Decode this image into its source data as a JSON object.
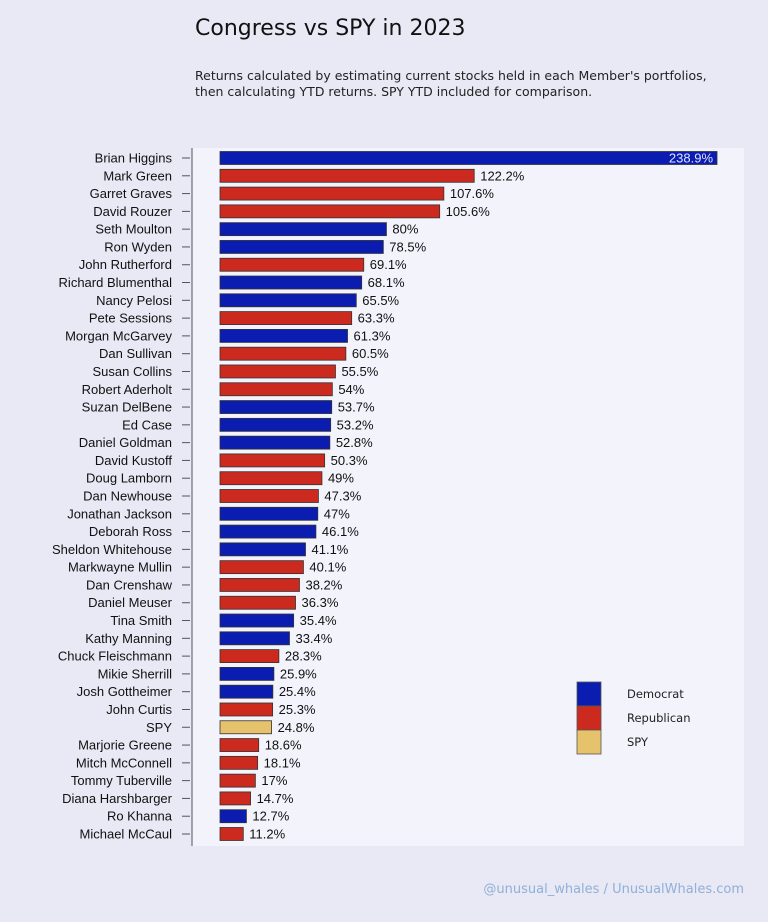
{
  "chart_data": {
    "type": "bar",
    "orientation": "horizontal",
    "title": "Congress vs SPY in 2023",
    "subtitle": "Returns calculated by estimating current stocks held in each Member's portfolios, then calculating YTD returns. SPY YTD included for comparison.",
    "value_suffix": "%",
    "categories": [
      "Brian Higgins",
      "Mark Green",
      "Garret Graves",
      "David Rouzer",
      "Seth Moulton",
      "Ron Wyden",
      "John Rutherford",
      "Richard Blumenthal",
      "Nancy Pelosi",
      "Pete Sessions",
      "Morgan McGarvey",
      "Dan Sullivan",
      "Susan Collins",
      "Robert Aderholt",
      "Suzan DelBene",
      "Ed Case",
      "Daniel Goldman",
      "David Kustoff",
      "Doug Lamborn",
      "Dan Newhouse",
      "Jonathan Jackson",
      "Deborah Ross",
      "Sheldon Whitehouse",
      "Markwayne Mullin",
      "Dan Crenshaw",
      "Daniel Meuser",
      "Tina Smith",
      "Kathy Manning",
      "Chuck Fleischmann",
      "Mikie Sherrill",
      "Josh Gottheimer",
      "John Curtis",
      "SPY",
      "Marjorie Greene",
      "Mitch McConnell",
      "Tommy Tuberville",
      "Diana Harshbarger",
      "Ro Khanna",
      "Michael McCaul"
    ],
    "values": [
      238.9,
      122.2,
      107.6,
      105.6,
      80,
      78.5,
      69.1,
      68.1,
      65.5,
      63.3,
      61.3,
      60.5,
      55.5,
      54,
      53.7,
      53.2,
      52.8,
      50.3,
      49,
      47.3,
      47,
      46.1,
      41.1,
      40.1,
      38.2,
      36.3,
      35.4,
      33.4,
      28.3,
      25.9,
      25.4,
      25.3,
      24.8,
      18.6,
      18.1,
      17,
      14.7,
      12.7,
      11.2
    ],
    "groups": [
      "Democrat",
      "Republican",
      "Republican",
      "Republican",
      "Democrat",
      "Democrat",
      "Republican",
      "Democrat",
      "Democrat",
      "Republican",
      "Democrat",
      "Republican",
      "Republican",
      "Republican",
      "Democrat",
      "Democrat",
      "Democrat",
      "Republican",
      "Republican",
      "Republican",
      "Democrat",
      "Democrat",
      "Democrat",
      "Republican",
      "Republican",
      "Republican",
      "Democrat",
      "Democrat",
      "Republican",
      "Democrat",
      "Democrat",
      "Republican",
      "SPY",
      "Republican",
      "Republican",
      "Republican",
      "Republican",
      "Democrat",
      "Republican"
    ],
    "legend": [
      {
        "name": "Democrat",
        "color": "#0a1db0"
      },
      {
        "name": "Republican",
        "color": "#cc2a1e"
      },
      {
        "name": "SPY",
        "color": "#e6c26c"
      }
    ],
    "legend_placement": "bottom-right",
    "xlim": [
      0,
      240
    ],
    "grid": false
  },
  "credit": "@unusual_whales / UnusualWhales.com"
}
